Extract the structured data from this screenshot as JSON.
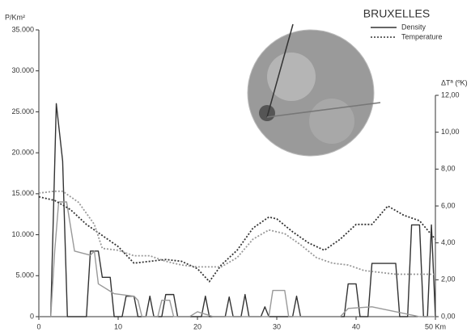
{
  "chart_data": {
    "type": "line",
    "title": "BRUXELLES",
    "y_label": "P/Km²",
    "y2_label": "ΔTª (ºK)",
    "xlim": [
      0,
      50
    ],
    "xticks": [
      0,
      10,
      20,
      30,
      40,
      {
        "value": 50,
        "label": "50 Km"
      }
    ],
    "ylim": [
      0,
      35000
    ],
    "yticks": [
      0,
      {
        "value": 5000,
        "label": "5.000"
      },
      {
        "value": 10000,
        "label": "10.000"
      },
      {
        "value": 15000,
        "label": "15.000"
      },
      {
        "value": 20000,
        "label": "20.000"
      },
      {
        "value": 25000,
        "label": "25.000"
      },
      {
        "value": 30000,
        "label": "30.000"
      },
      {
        "value": 35000,
        "label": "35.000"
      }
    ],
    "y2lim": [
      0,
      12
    ],
    "y2ticks": [
      {
        "value": 0,
        "label": "0,00"
      },
      {
        "value": 2,
        "label": "2,00"
      },
      {
        "value": 4,
        "label": "4,00"
      },
      {
        "value": 6,
        "label": "6,00"
      },
      {
        "value": 8,
        "label": "8,00"
      },
      {
        "value": 10,
        "label": "10,00"
      },
      {
        "value": 12,
        "label": "12,00"
      }
    ],
    "series": [
      {
        "name": "Density",
        "color": "#333333",
        "style": "solid",
        "x": [
          0,
          1.5,
          2.2,
          3,
          3.6,
          6,
          6.5,
          7.5,
          8,
          9,
          9.5,
          10.5,
          11,
          12,
          12.5,
          13.5,
          14,
          14.5,
          15.5,
          16,
          17,
          17.5,
          20.5,
          21,
          21.5,
          23.5,
          24,
          24.5,
          25.5,
          26,
          26.5,
          28,
          28.5,
          29,
          32,
          32.5,
          33,
          38.5,
          39,
          40,
          40.5,
          41.5,
          42,
          45,
          45.5,
          46.5,
          47,
          48,
          48.5,
          49,
          49.5,
          50
        ],
        "values": [
          0,
          0,
          26000,
          19000,
          0,
          0,
          8000,
          8000,
          4800,
          4800,
          0,
          0,
          2500,
          2500,
          0,
          0,
          2500,
          0,
          0,
          2700,
          2700,
          0,
          0,
          2500,
          0,
          0,
          2400,
          0,
          0,
          2700,
          0,
          0,
          1200,
          0,
          0,
          2500,
          0,
          0,
          4000,
          4000,
          0,
          0,
          6500,
          6500,
          0,
          0,
          11200,
          11200,
          0,
          0,
          11200,
          0
        ]
      },
      {
        "color": "#999999",
        "style": "solid",
        "x": [
          0,
          1.5,
          2,
          2.5,
          3.5,
          4.5,
          6.5,
          7,
          7.5,
          9.5,
          12,
          12.5,
          13,
          15,
          15.5,
          16.5,
          17,
          19,
          20,
          22,
          29,
          29.5,
          31,
          31.5,
          33,
          38,
          39,
          42,
          46,
          48,
          50
        ],
        "values": [
          0,
          0,
          8000,
          14000,
          14000,
          8000,
          7500,
          8000,
          4000,
          2800,
          2500,
          2000,
          0,
          0,
          2000,
          2000,
          0,
          0,
          600,
          0,
          0,
          3200,
          3200,
          0,
          0,
          0,
          1000,
          1200,
          400,
          0,
          0
        ]
      },
      {
        "name": "Temperature",
        "color": "#333333",
        "style": "dotted",
        "axis": "y2",
        "x": [
          0,
          2,
          4,
          6,
          8,
          10,
          12,
          14,
          16,
          18,
          20,
          21.5,
          23,
          25,
          27,
          29,
          30,
          32,
          34,
          36,
          38,
          40,
          42,
          44,
          46,
          48,
          50
        ],
        "values": [
          6.5,
          6.3,
          5.8,
          5.0,
          4.4,
          3.8,
          2.9,
          3.0,
          3.1,
          3.0,
          2.6,
          1.9,
          2.8,
          3.6,
          4.8,
          5.4,
          5.3,
          4.6,
          4.0,
          3.6,
          4.2,
          5.0,
          5.0,
          6.0,
          5.5,
          5.2,
          4.2
        ]
      },
      {
        "color": "#999999",
        "style": "dotted",
        "axis": "y2",
        "x": [
          0,
          2,
          3,
          5,
          7,
          8,
          10,
          12,
          14,
          16,
          18,
          20,
          23,
          25,
          27,
          29,
          31,
          33,
          35,
          37,
          39,
          41,
          43,
          45,
          47,
          50
        ],
        "values": [
          6.7,
          6.8,
          6.8,
          6.2,
          5.0,
          3.7,
          3.6,
          3.3,
          3.3,
          3.0,
          2.8,
          2.7,
          2.7,
          3.2,
          4.2,
          4.7,
          4.5,
          3.9,
          3.2,
          2.9,
          2.8,
          2.5,
          2.4,
          2.3,
          2.3,
          2.3
        ]
      }
    ]
  }
}
